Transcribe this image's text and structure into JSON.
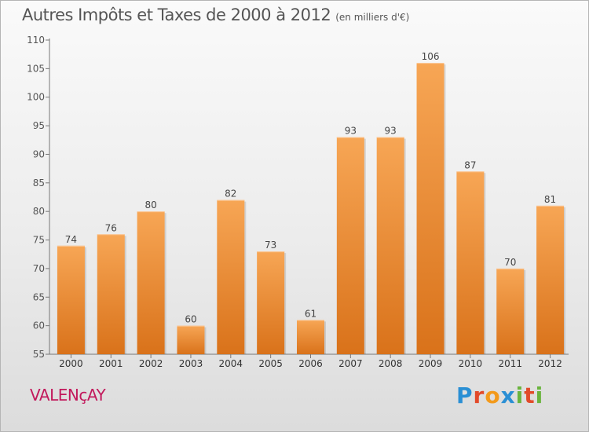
{
  "header": {
    "title": "Autres Impôts et Taxes de 2000 à 2012",
    "subtitle": "(en milliers d'€)"
  },
  "footer": {
    "town": "VALENçAY",
    "brand": "Proxiti"
  },
  "colors": {
    "bar_top": "#f7a655",
    "bar_bottom": "#d9721a",
    "brand_p": "#2a8fd4",
    "brand_r": "#e24a2a",
    "brand_o": "#f39a1b",
    "brand_x": "#2a8fd4",
    "brand_i": "#6ab43e",
    "brand_t": "#e24a2a",
    "brand_i2": "#6ab43e"
  },
  "chart_data": {
    "type": "bar",
    "title": "Autres Impôts et Taxes de 2000 à 2012",
    "subtitle": "(en milliers d'€)",
    "categories": [
      "2000",
      "2001",
      "2002",
      "2003",
      "2004",
      "2005",
      "2006",
      "2007",
      "2008",
      "2009",
      "2010",
      "2011",
      "2012"
    ],
    "values": [
      74,
      76,
      80,
      60,
      82,
      73,
      61,
      93,
      93,
      106,
      87,
      70,
      81
    ],
    "ylim": [
      55,
      110
    ],
    "yticks": [
      55,
      60,
      65,
      70,
      75,
      80,
      85,
      90,
      95,
      100,
      105,
      110
    ],
    "grid": false,
    "xlabel": "",
    "ylabel": ""
  }
}
